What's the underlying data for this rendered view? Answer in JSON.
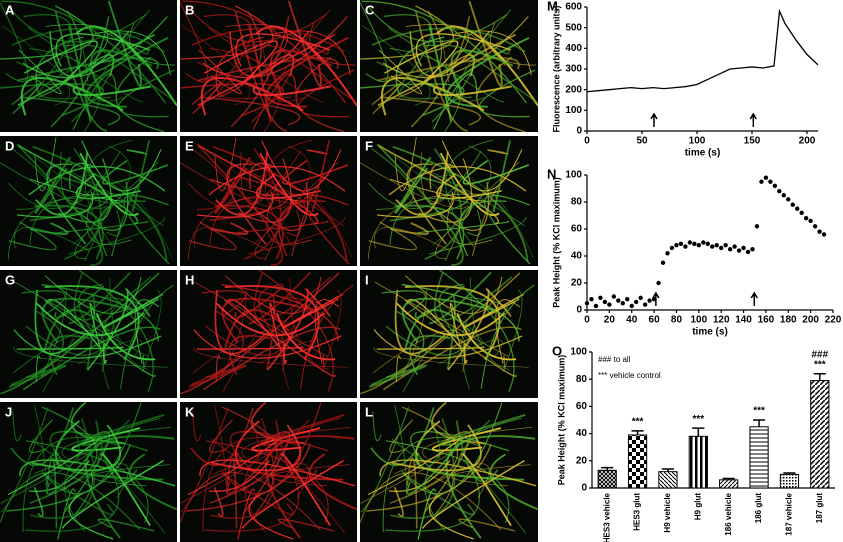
{
  "panels": [
    "A",
    "B",
    "C",
    "D",
    "E",
    "F",
    "G",
    "H",
    "I",
    "J",
    "K",
    "L"
  ],
  "chart_data": [
    {
      "type": "line",
      "panel": "M",
      "xlabel": "time (s)",
      "ylabel": "Fluorescence (arbitrary units)",
      "x": [
        0,
        10,
        20,
        30,
        40,
        50,
        60,
        70,
        80,
        90,
        100,
        110,
        120,
        130,
        140,
        150,
        160,
        170,
        175,
        180,
        190,
        200,
        210
      ],
      "values": [
        190,
        195,
        200,
        205,
        210,
        205,
        210,
        205,
        210,
        215,
        225,
        250,
        275,
        300,
        305,
        310,
        305,
        315,
        580,
        520,
        440,
        370,
        320
      ],
      "color": "#000000",
      "xlim": [
        0,
        210
      ],
      "xticks": [
        0,
        50,
        100,
        150,
        200
      ],
      "ylim": [
        0,
        600
      ],
      "yticks": [
        0,
        100,
        200,
        300,
        400,
        500,
        600
      ]
    },
    {
      "type": "scatter",
      "panel": "N",
      "xlabel": "time (s)",
      "ylabel": "Peak Height (% KCl maximum)",
      "x": [
        0,
        4,
        8,
        12,
        16,
        20,
        24,
        28,
        32,
        36,
        40,
        44,
        48,
        52,
        56,
        60,
        64,
        68,
        72,
        76,
        80,
        84,
        88,
        92,
        96,
        100,
        104,
        108,
        112,
        116,
        120,
        124,
        128,
        132,
        136,
        140,
        144,
        148,
        152,
        156,
        160,
        164,
        168,
        172,
        176,
        180,
        184,
        188,
        192,
        196,
        200,
        204,
        208,
        212
      ],
      "values": [
        5,
        8,
        3,
        9,
        6,
        4,
        10,
        7,
        5,
        8,
        3,
        6,
        9,
        4,
        7,
        8,
        20,
        35,
        42,
        46,
        48,
        49,
        47,
        50,
        49,
        48,
        50,
        49,
        47,
        48,
        46,
        48,
        45,
        47,
        44,
        46,
        43,
        45,
        62,
        95,
        98,
        95,
        92,
        88,
        85,
        82,
        78,
        75,
        72,
        68,
        66,
        62,
        58,
        56
      ],
      "color": "#000000",
      "xlim": [
        0,
        220
      ],
      "xticks": [
        0,
        20,
        40,
        60,
        80,
        100,
        120,
        140,
        160,
        180,
        200,
        220
      ],
      "ylim": [
        0,
        100
      ],
      "yticks": [
        0,
        20,
        40,
        60,
        80,
        100
      ]
    },
    {
      "type": "bar",
      "panel": "O",
      "ylabel": "Peak Height (% KCl maximum)",
      "categories": [
        "HES3 vehicle",
        "HES3 glut",
        "H9 vehicle",
        "H9 glut",
        "186 vehicle",
        "186 glut",
        "187 vehicle",
        "187 glut"
      ],
      "values": [
        13,
        39,
        12,
        38,
        6,
        45,
        10,
        79
      ],
      "errors": [
        2,
        3,
        2,
        6,
        1,
        5,
        1,
        5
      ],
      "markers": [
        null,
        "***",
        null,
        "***",
        null,
        "***",
        null,
        "***"
      ],
      "markers2": [
        null,
        null,
        null,
        null,
        null,
        null,
        null,
        "###"
      ],
      "notes": [
        "### to all",
        "*** vehicle control"
      ],
      "ylim": [
        0,
        100
      ],
      "yticks": [
        0,
        20,
        40,
        60,
        80,
        100
      ]
    }
  ]
}
